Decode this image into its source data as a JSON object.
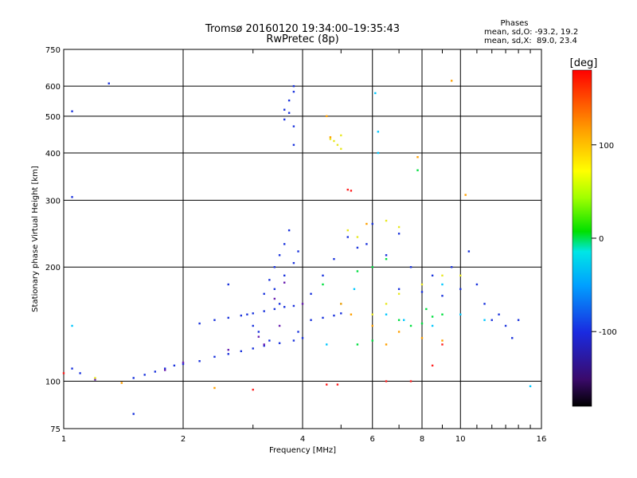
{
  "chart_data": {
    "type": "scatter",
    "title": "Tromsø 20160120 19:34:00–19:35:43",
    "subtitle": "RwPretec (8p)",
    "phase_box": {
      "heading": "Phases",
      "line1": "mean, sd,O: -93.2, 19.2",
      "line2": "mean, sd,X:  89.0, 23.4"
    },
    "xlabel": "Frequency [MHz]",
    "ylabel": "Stationary phase Virtual Height [km]",
    "x_scale": "log",
    "y_scale": "log",
    "xlim": [
      1,
      16
    ],
    "ylim": [
      75,
      750
    ],
    "xticks": [
      1,
      2,
      4,
      6,
      8,
      10,
      16
    ],
    "xtick_labels": [
      "1",
      "2",
      "4",
      "6",
      "8",
      "10",
      "16"
    ],
    "yticks": [
      75,
      100,
      200,
      300,
      400,
      500,
      600,
      750
    ],
    "ytick_labels": [
      "75",
      "100",
      "200",
      "300",
      "400",
      "500",
      "600",
      "750"
    ],
    "grid": true,
    "colorbar": {
      "label": "[deg]",
      "min": -180,
      "max": 180,
      "ticks": [
        -100,
        0,
        100
      ],
      "tick_labels": [
        "-100",
        "0",
        "100"
      ]
    },
    "series": [
      {
        "color": "#1a33dd",
        "points": [
          [
            1.5,
            102
          ],
          [
            1.6,
            104
          ],
          [
            1.7,
            106
          ],
          [
            1.8,
            108
          ],
          [
            1.9,
            110
          ],
          [
            2.0,
            111
          ],
          [
            2.2,
            113
          ],
          [
            2.4,
            116
          ],
          [
            2.6,
            118
          ],
          [
            2.8,
            120
          ],
          [
            3.0,
            122
          ],
          [
            3.2,
            124
          ],
          [
            3.5,
            126
          ],
          [
            3.8,
            128
          ],
          [
            4.0,
            130
          ],
          [
            2.2,
            142
          ],
          [
            2.4,
            145
          ],
          [
            2.6,
            147
          ],
          [
            2.8,
            149
          ],
          [
            3.0,
            151
          ],
          [
            3.2,
            153
          ],
          [
            3.4,
            155
          ],
          [
            3.6,
            157
          ],
          [
            3.8,
            158
          ],
          [
            4.2,
            145
          ],
          [
            4.5,
            147
          ],
          [
            4.8,
            149
          ],
          [
            5.0,
            151
          ],
          [
            3.2,
            170
          ],
          [
            3.3,
            185
          ],
          [
            3.4,
            200
          ],
          [
            3.5,
            215
          ],
          [
            3.6,
            230
          ],
          [
            3.7,
            250
          ],
          [
            3.4,
            175
          ],
          [
            3.6,
            190
          ],
          [
            3.8,
            205
          ],
          [
            3.5,
            160
          ],
          [
            3.0,
            140
          ],
          [
            3.9,
            220
          ],
          [
            3.6,
            490
          ],
          [
            3.6,
            520
          ],
          [
            3.7,
            550
          ],
          [
            3.8,
            580
          ],
          [
            3.8,
            600
          ],
          [
            3.7,
            510
          ],
          [
            3.8,
            470
          ],
          [
            3.8,
            420
          ],
          [
            2.6,
            180
          ],
          [
            2.9,
            150
          ],
          [
            3.1,
            135
          ],
          [
            3.3,
            128
          ],
          [
            3.9,
            135
          ],
          [
            4.2,
            170
          ],
          [
            4.5,
            190
          ],
          [
            4.8,
            210
          ],
          [
            5.5,
            225
          ],
          [
            7.0,
            175
          ],
          [
            8.0,
            172
          ],
          [
            9.0,
            168
          ],
          [
            10.0,
            175
          ],
          [
            11.0,
            180
          ],
          [
            12.0,
            145
          ],
          [
            13.0,
            140
          ],
          [
            14.0,
            145
          ],
          [
            12.5,
            150
          ],
          [
            13.5,
            130
          ],
          [
            11.5,
            160
          ],
          [
            9.5,
            200
          ],
          [
            10.5,
            220
          ],
          [
            8.5,
            190
          ],
          [
            5.2,
            240
          ],
          [
            5.8,
            230
          ],
          [
            6.5,
            215
          ],
          [
            7.5,
            200
          ],
          [
            6.0,
            260
          ],
          [
            7.0,
            245
          ],
          [
            1.05,
            108
          ],
          [
            1.1,
            105
          ],
          [
            1.3,
            610
          ],
          [
            1.05,
            515
          ],
          [
            1.05,
            306
          ],
          [
            1.5,
            82
          ]
        ]
      },
      {
        "color": "#6a1fb0",
        "points": [
          [
            3.2,
            125
          ],
          [
            3.5,
            140
          ],
          [
            3.4,
            165
          ],
          [
            3.6,
            182
          ],
          [
            2.0,
            112
          ],
          [
            2.6,
            121
          ],
          [
            3.1,
            131
          ],
          [
            1.2,
            101
          ],
          [
            1.8,
            107
          ],
          [
            4.0,
            160
          ]
        ]
      },
      {
        "color": "#00c8ff",
        "points": [
          [
            1.05,
            140
          ],
          [
            6.2,
            400
          ],
          [
            6.2,
            455
          ],
          [
            5.0,
            160
          ],
          [
            6.5,
            150
          ],
          [
            7.2,
            145
          ],
          [
            8.5,
            140
          ],
          [
            9.0,
            180
          ],
          [
            10.0,
            150
          ],
          [
            11.5,
            145
          ],
          [
            15.0,
            97
          ],
          [
            6.1,
            575
          ],
          [
            4.6,
            125
          ],
          [
            5.4,
            175
          ]
        ]
      },
      {
        "color": "#00e040",
        "points": [
          [
            5.5,
            195
          ],
          [
            6.0,
            200
          ],
          [
            6.5,
            210
          ],
          [
            7.0,
            145
          ],
          [
            7.5,
            140
          ],
          [
            8.0,
            142
          ],
          [
            8.5,
            148
          ],
          [
            9.0,
            150
          ],
          [
            5.5,
            125
          ],
          [
            6.0,
            128
          ],
          [
            7.8,
            360
          ],
          [
            8.2,
            155
          ],
          [
            4.5,
            180
          ]
        ]
      },
      {
        "color": "#e8e820",
        "points": [
          [
            4.8,
            430
          ],
          [
            4.9,
            420
          ],
          [
            5.0,
            445
          ],
          [
            4.7,
            435
          ],
          [
            5.0,
            410
          ],
          [
            5.2,
            250
          ],
          [
            5.5,
            240
          ],
          [
            6.0,
            150
          ],
          [
            6.5,
            160
          ],
          [
            7.0,
            170
          ],
          [
            8.0,
            180
          ],
          [
            9.0,
            190
          ],
          [
            10.0,
            190
          ],
          [
            6.5,
            265
          ],
          [
            7.0,
            255
          ],
          [
            1.2,
            102
          ]
        ]
      },
      {
        "color": "#ffa000",
        "points": [
          [
            5.0,
            160
          ],
          [
            5.3,
            150
          ],
          [
            6.0,
            140
          ],
          [
            6.5,
            125
          ],
          [
            7.0,
            135
          ],
          [
            8.0,
            130
          ],
          [
            9.0,
            128
          ],
          [
            9.5,
            620
          ],
          [
            7.8,
            390
          ],
          [
            5.8,
            260
          ],
          [
            4.6,
            500
          ],
          [
            4.7,
            440
          ],
          [
            2.4,
            96
          ],
          [
            1.4,
            99
          ],
          [
            10.3,
            310
          ]
        ]
      },
      {
        "color": "#ff2020",
        "points": [
          [
            5.2,
            320
          ],
          [
            5.3,
            318
          ],
          [
            4.6,
            98
          ],
          [
            4.9,
            98
          ],
          [
            6.5,
            100
          ],
          [
            7.5,
            100
          ],
          [
            8.5,
            110
          ],
          [
            3.0,
            95
          ],
          [
            1.0,
            105
          ],
          [
            9.0,
            125
          ]
        ]
      }
    ]
  }
}
